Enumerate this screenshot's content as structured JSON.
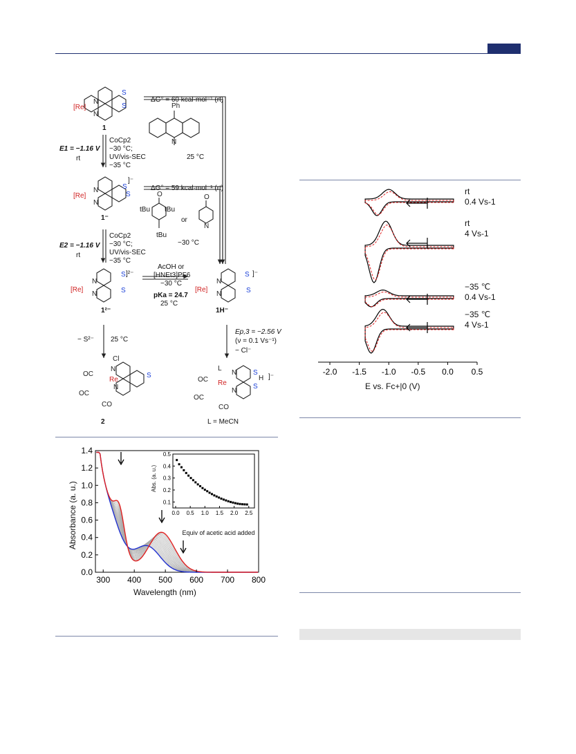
{
  "scheme": {
    "cmpd1": "1",
    "cmpd1_minus": "1⁻",
    "cmpd1_2minus": "1²⁻",
    "cmpd1H_minus": "1H⁻",
    "cmpd2": "2",
    "re_label": "[Re]",
    "E1_label": "E1 = −1.16 V",
    "E1_cond": "rt",
    "E2_label": "E2 = −1.16 V",
    "E2_cond": "rt",
    "step1_conditions": [
      "CoCp2",
      "−30 °C;",
      "UV/vis-SEC",
      "−35 °C"
    ],
    "step2_conditions": [
      "CoCp2",
      "−30 °C;",
      "UV/vis-SEC",
      "−35 °C"
    ],
    "dG1": "ΔG° = 60 kcal·mol⁻¹ (rt)",
    "dG1_temp": "25 °C",
    "dG2": "ΔG° = 59 kcal·mol⁻¹ (rt)",
    "dG2_or": "or",
    "dG2_temp": "−30 °C",
    "acid_conditions": [
      "AcOH or",
      "[HNEt3]PF6",
      "−30 °C"
    ],
    "pKa": "pKa = 24.7",
    "pKa_temp": "25 °C",
    "loss_s": "− S²⁻",
    "loss_s_temp": "25 °C",
    "ep3": "Ep,3 = −2.56 V",
    "ep3_rate": "(ν = 0.1 Vs⁻¹)",
    "ep3_loss": "− Cl⁻",
    "L_def": "L = MeCN",
    "tbu": "tBu",
    "ph": "Ph",
    "charge_minus": "]⁻",
    "charge_2minus": "]²⁻"
  },
  "cv_chart": {
    "chart_data": {
      "type": "line",
      "xlabel": "E vs. Fc+|0 (V)",
      "xlim": [
        -2.2,
        0.5
      ],
      "x_ticks": [
        "-2.0",
        "-1.5",
        "-1.0",
        "-0.5",
        "0.0",
        "0.5"
      ],
      "traces": [
        {
          "label_line1": "rt",
          "label_line2": "0.4 Vs-1"
        },
        {
          "label_line1": "rt",
          "label_line2": "4 Vs-1"
        },
        {
          "label_line1": "−35 ℃",
          "label_line2": "0.4 Vs-1"
        },
        {
          "label_line1": "−35 ℃",
          "label_line2": "4 Vs-1"
        }
      ],
      "series": [
        {
          "color": "#000000",
          "style": "solid"
        },
        {
          "color": "#e02020",
          "style": "dashed"
        }
      ]
    }
  },
  "uv_chart": {
    "chart_data": {
      "type": "line",
      "xlabel": "Wavelength (nm)",
      "ylabel": "Absorbance (a. u.)",
      "xlim": [
        275,
        800
      ],
      "ylim": [
        0,
        1.4
      ],
      "x_ticks": [
        "300",
        "400",
        "500",
        "600",
        "700",
        "800"
      ],
      "y_ticks": [
        "0.0",
        "0.2",
        "0.4",
        "0.6",
        "0.8",
        "1.0",
        "1.2",
        "1.4"
      ],
      "red_peaks_nm": [
        353,
        487
      ],
      "inset": {
        "type": "scatter",
        "xlabel": "Equiv of acetic acid added",
        "ylabel": "Abs. (a. u.)",
        "xlim": [
          0,
          2.6
        ],
        "ylim": [
          0.05,
          0.5
        ],
        "x_ticks": [
          "0.0",
          "0.5",
          "1.0",
          "1.5",
          "2.0",
          "2.5"
        ],
        "y_ticks": [
          "0.1",
          "0.2",
          "0.3",
          "0.4",
          "0.5"
        ],
        "x": [
          0.04,
          0.12,
          0.2,
          0.28,
          0.36,
          0.44,
          0.52,
          0.6,
          0.68,
          0.76,
          0.84,
          0.92,
          1.0,
          1.08,
          1.16,
          1.24,
          1.32,
          1.4,
          1.48,
          1.56,
          1.64,
          1.72,
          1.8,
          1.88,
          1.96,
          2.04,
          2.12,
          2.2,
          2.28,
          2.36,
          2.44
        ],
        "y": [
          0.45,
          0.415,
          0.39,
          0.365,
          0.342,
          0.32,
          0.3,
          0.282,
          0.264,
          0.247,
          0.232,
          0.216,
          0.202,
          0.19,
          0.177,
          0.166,
          0.155,
          0.146,
          0.137,
          0.128,
          0.12,
          0.113,
          0.106,
          0.1,
          0.095,
          0.09,
          0.086,
          0.083,
          0.081,
          0.08,
          0.079
        ]
      }
    }
  }
}
